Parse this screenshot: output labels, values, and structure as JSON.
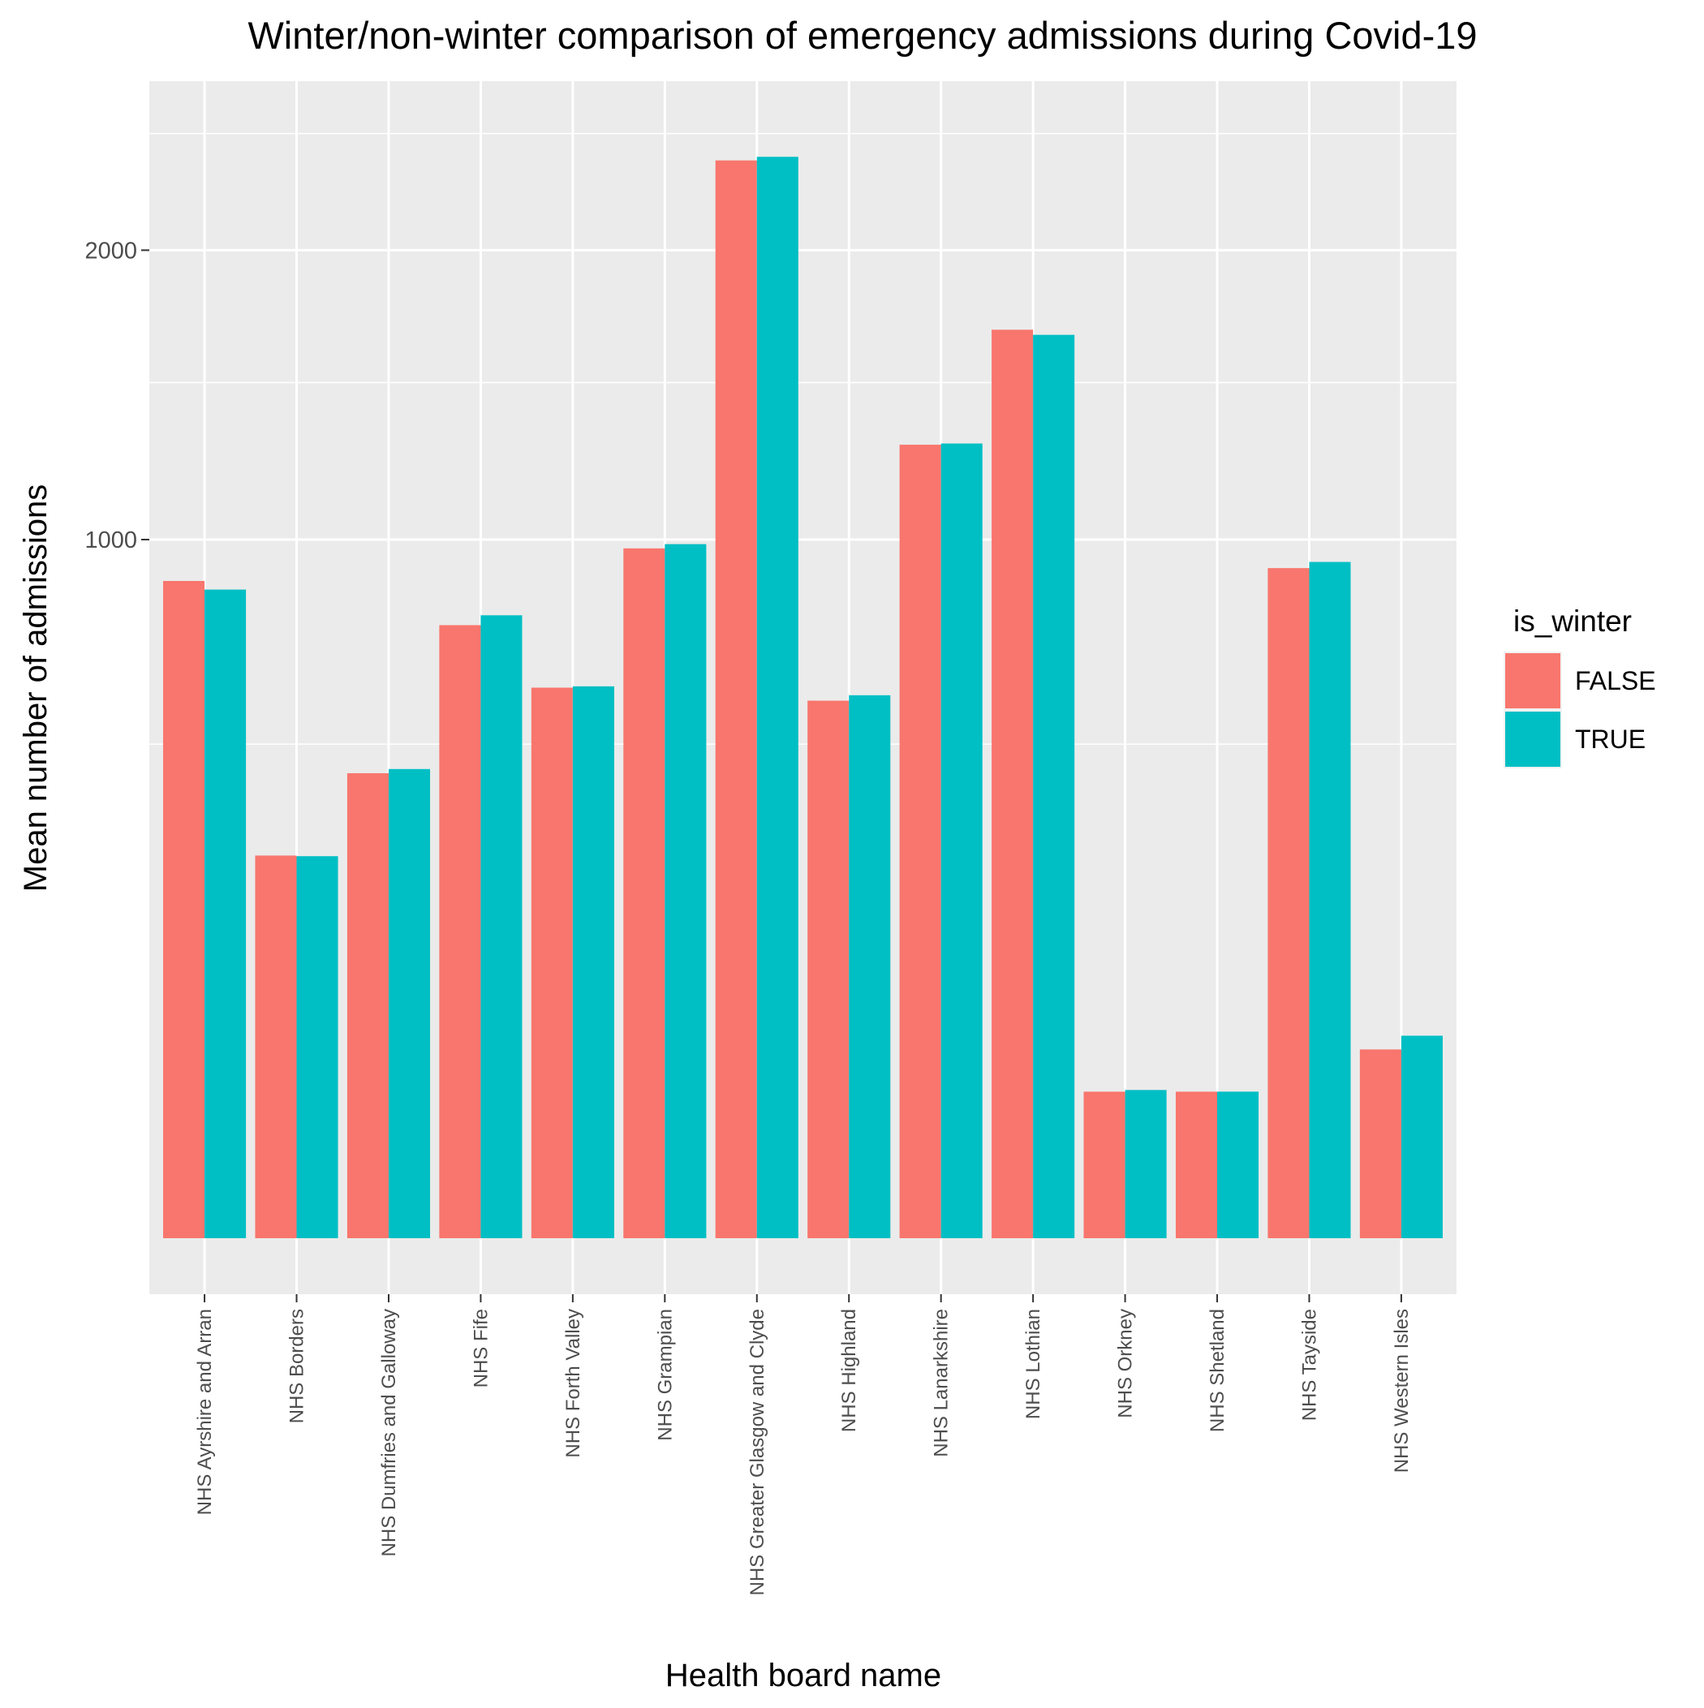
{
  "chart_data": {
    "type": "bar",
    "title": "Winter/non-winter comparison of emergency admissions during Covid-19",
    "xlabel": "Health board name",
    "ylabel": "Mean number of admissions",
    "ylim": [
      0,
      2600
    ],
    "yscale": "sqrt",
    "yticks": [
      1000,
      2000
    ],
    "ytick_labels": [
      "1000",
      "2000"
    ],
    "ygrid_minor": [
      500,
      1500,
      2500
    ],
    "categories": [
      "NHS Ayrshire and Arran",
      "NHS Borders",
      "NHS Dumfries and Galloway",
      "NHS Fife",
      "NHS Forth Valley",
      "NHS Grampian",
      "NHS Greater Glasgow and Clyde",
      "NHS Highland",
      "NHS Lanarkshire",
      "NHS Lothian",
      "NHS Orkney",
      "NHS Shetland",
      "NHS Tayside",
      "NHS Western Isles"
    ],
    "legend_title": "is_winter",
    "legend_position": "right",
    "grid": true,
    "series": [
      {
        "name": "FALSE",
        "color": "#F8766D",
        "values": [
          885,
          300,
          443,
          770,
          621,
          975,
          2380,
          592,
          1290,
          1691,
          44,
          44,
          920,
          73
        ]
      },
      {
        "name": "TRUE",
        "color": "#00BFC4",
        "values": [
          862,
          299,
          451,
          795,
          624,
          987,
          2396,
          604,
          1294,
          1672,
          45,
          44,
          937,
          84
        ]
      }
    ]
  }
}
